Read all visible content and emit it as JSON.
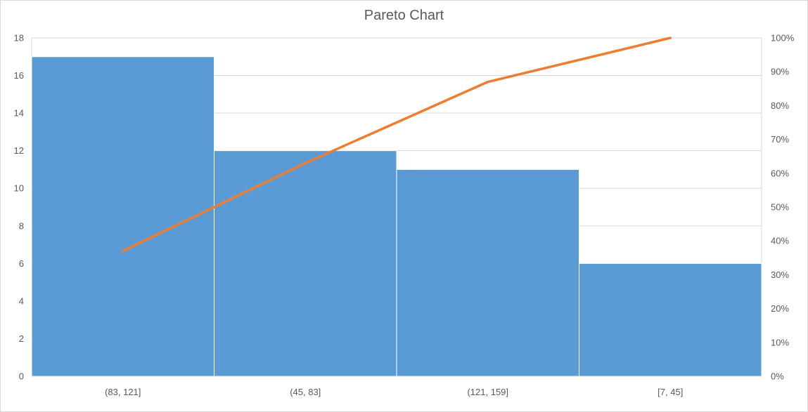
{
  "chart_data": {
    "type": "bar",
    "title": "Pareto Chart",
    "categories": [
      "(83, 121]",
      "(45, 83]",
      "(121, 159]",
      "[7, 45]"
    ],
    "series": [
      {
        "type": "bar",
        "axis": "left",
        "color": "#5b9bd5",
        "values": [
          17,
          12,
          11,
          6
        ]
      },
      {
        "type": "line",
        "axis": "right",
        "color": "#ed7d31",
        "values": [
          0.37,
          0.63,
          0.87,
          1.0
        ]
      }
    ],
    "ylim": [
      0,
      18
    ],
    "y_ticks": [
      "0",
      "2",
      "4",
      "6",
      "8",
      "10",
      "12",
      "14",
      "16",
      "18"
    ],
    "y2lim": [
      0,
      1
    ],
    "y2_ticks": [
      "0%",
      "10%",
      "20%",
      "30%",
      "40%",
      "50%",
      "60%",
      "70%",
      "80%",
      "90%",
      "100%"
    ],
    "grid": true,
    "legend": "none"
  }
}
